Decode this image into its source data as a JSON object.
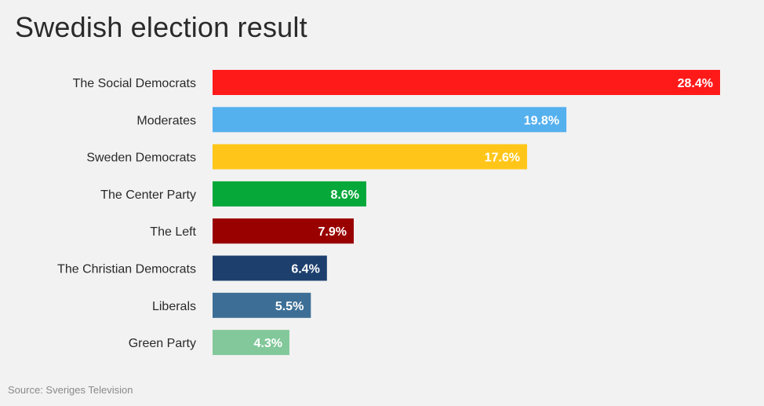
{
  "chart_data": {
    "type": "bar",
    "orientation": "horizontal",
    "title": "Swedish election result",
    "categories": [
      "The Social Democrats",
      "Moderates",
      "Sweden Democrats",
      "The Center Party",
      "The Left",
      "The Christian Democrats",
      "Liberals",
      "Green Party"
    ],
    "values": [
      28.4,
      19.8,
      17.6,
      8.6,
      7.9,
      6.4,
      5.5,
      4.3
    ],
    "value_labels": [
      "28.4%",
      "19.8%",
      "17.6%",
      "8.6%",
      "7.9%",
      "6.4%",
      "5.5%",
      "4.3%"
    ],
    "colors": [
      "#ff1a1a",
      "#55b0ee",
      "#ffc619",
      "#06a83a",
      "#990000",
      "#1c3f6e",
      "#3d6f96",
      "#82c89a"
    ],
    "xlim": [
      0,
      28.4
    ],
    "grid": false,
    "legend": "none"
  },
  "source": "Source: Sveriges Television"
}
